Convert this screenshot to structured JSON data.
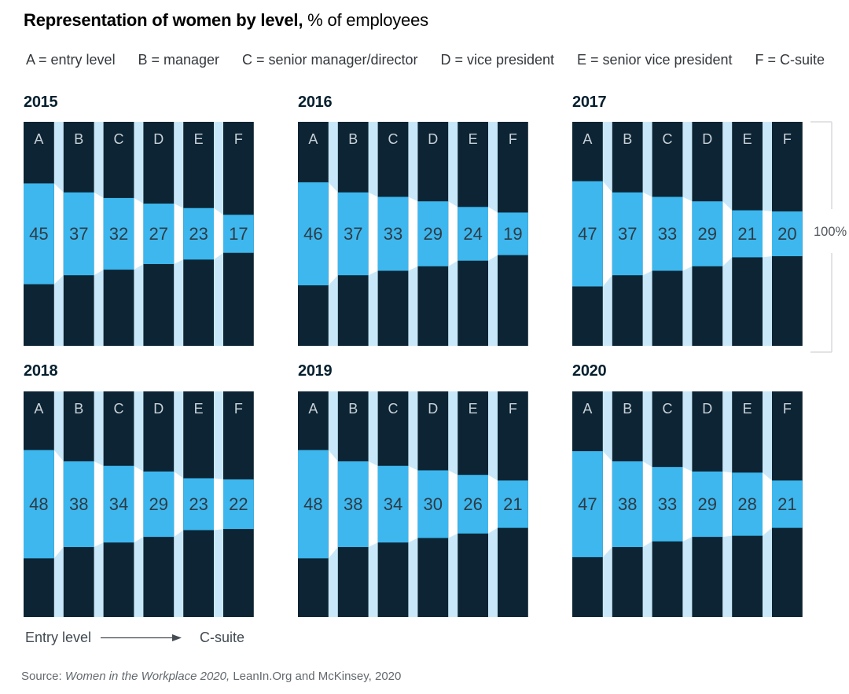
{
  "title": {
    "bold": "Representation of women by level,",
    "rest": " % of employees"
  },
  "legend_items": [
    "A = entry level",
    "B = manager",
    "C = senior manager/director",
    "D = vice president",
    "E = senior vice president",
    "F = C-suite"
  ],
  "bracket_label": "100%",
  "footer": {
    "from": "Entry level",
    "to": "C-suite"
  },
  "source": {
    "prefix": "Source: ",
    "italic": "Women in the Workplace 2020,",
    "rest": " LeanIn.Org and McKinsey, 2020"
  },
  "colors": {
    "navy": "#0c2433",
    "band_blue": "#3db7ee",
    "pale_blue": "#c8e8f9",
    "connector_white": "#ffffff",
    "letter_text": "#c9d1d8",
    "value_text": "#2f3b45",
    "bracket_line": "#d8dadb"
  },
  "chart_data": {
    "type": "bar",
    "title": "Representation of women by level, % of employees",
    "ylabel": "% of employees",
    "ylim": [
      0,
      100
    ],
    "full_height_note": "100%",
    "levels": [
      {
        "key": "A",
        "label": "entry level"
      },
      {
        "key": "B",
        "label": "manager"
      },
      {
        "key": "C",
        "label": "senior manager/director"
      },
      {
        "key": "D",
        "label": "vice president"
      },
      {
        "key": "E",
        "label": "senior vice president"
      },
      {
        "key": "F",
        "label": "C-suite"
      }
    ],
    "series": [
      {
        "year": "2015",
        "values": [
          45,
          37,
          32,
          27,
          23,
          17
        ]
      },
      {
        "year": "2016",
        "values": [
          46,
          37,
          33,
          29,
          24,
          19
        ]
      },
      {
        "year": "2017",
        "values": [
          47,
          37,
          33,
          29,
          21,
          20
        ]
      },
      {
        "year": "2018",
        "values": [
          48,
          38,
          34,
          29,
          23,
          22
        ]
      },
      {
        "year": "2019",
        "values": [
          48,
          38,
          34,
          30,
          26,
          21
        ]
      },
      {
        "year": "2020",
        "values": [
          47,
          38,
          33,
          29,
          28,
          21
        ]
      }
    ]
  }
}
